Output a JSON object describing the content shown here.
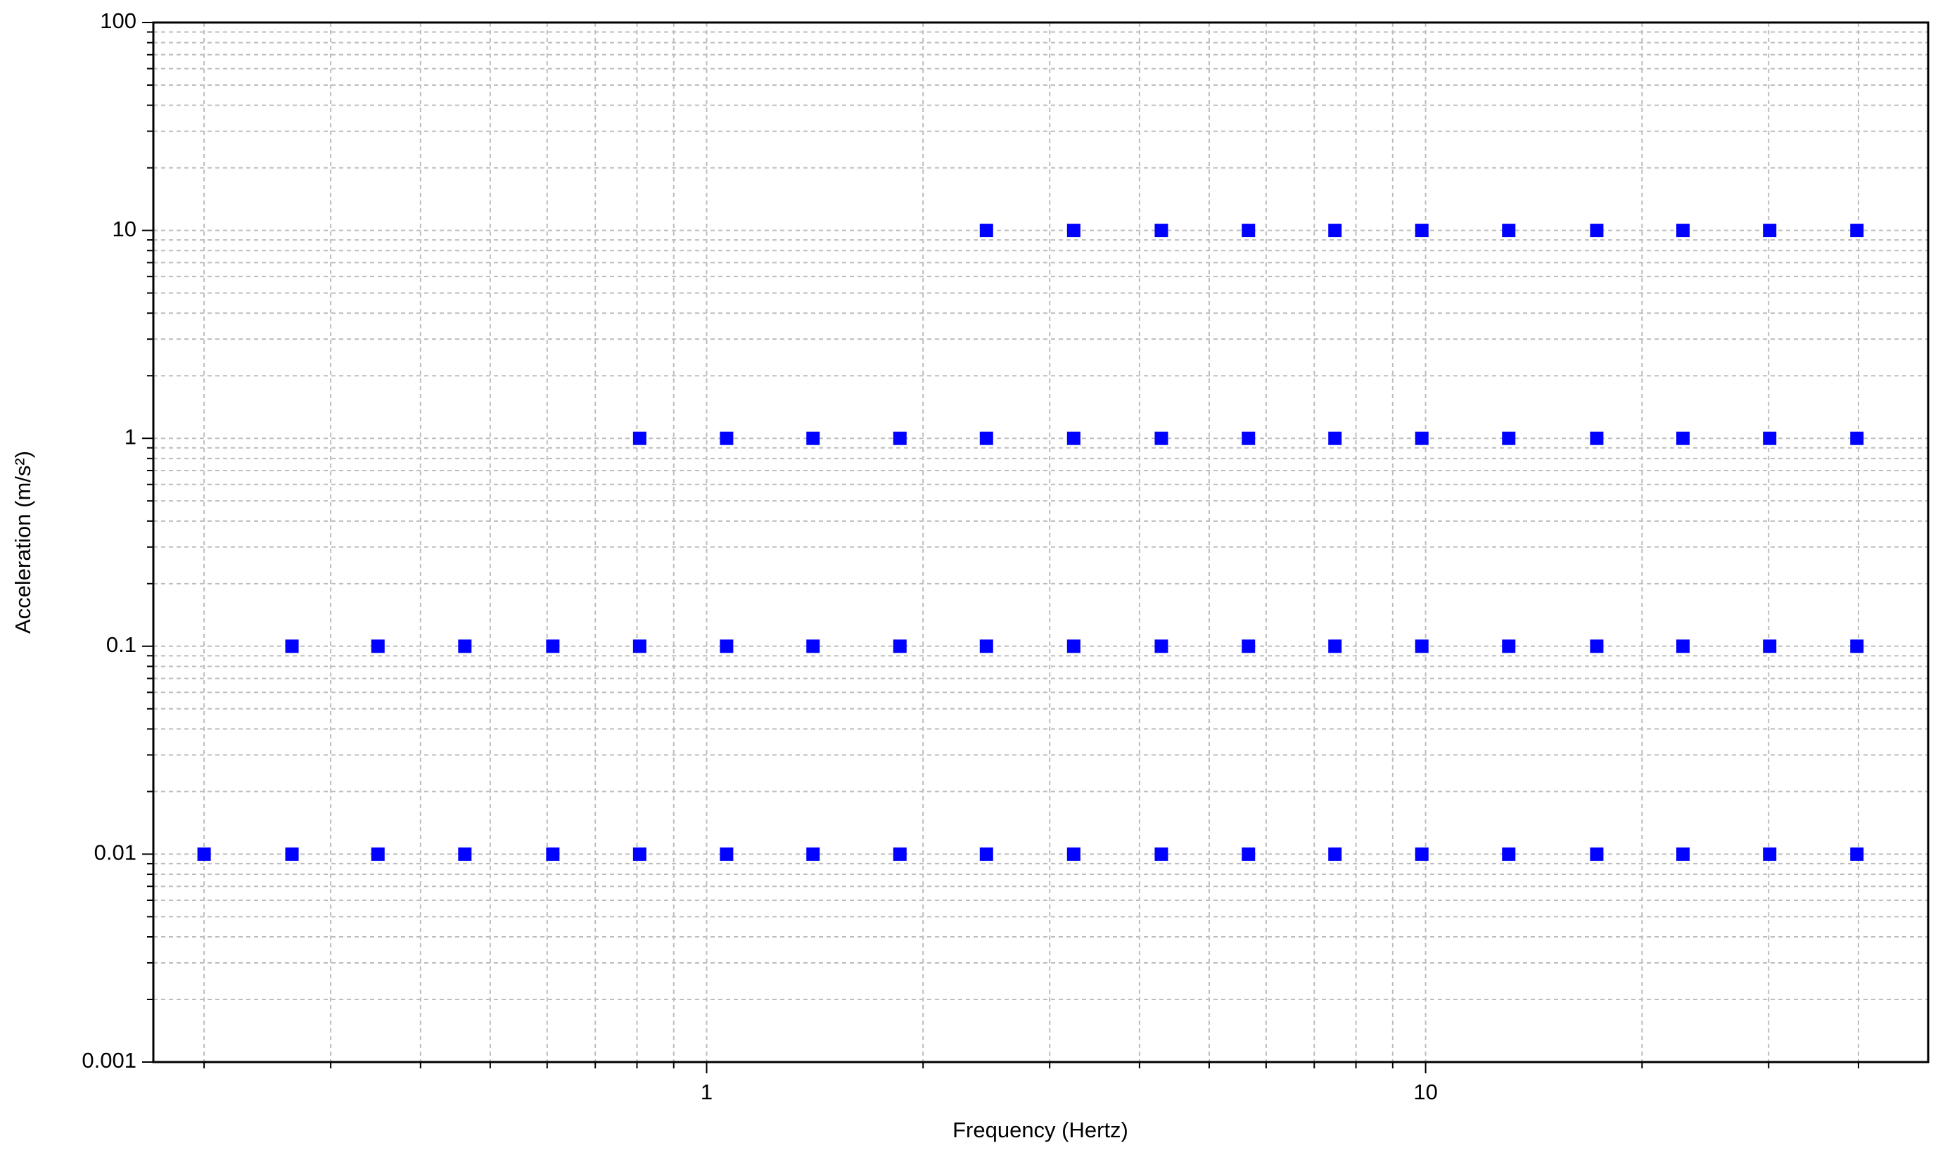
{
  "chart_data": {
    "type": "scatter",
    "xlabel": "Frequency (Hertz)",
    "ylabel": "Acceleration (m/s²)",
    "xscale": "log",
    "yscale": "log",
    "grid": true,
    "xlim": [
      0.17,
      50
    ],
    "ylim": [
      0.001,
      100
    ],
    "xticks": [
      1,
      10
    ],
    "xminor_ticks": [
      0.2,
      0.3,
      0.4,
      0.5,
      0.6,
      0.7,
      0.8,
      0.9,
      2,
      3,
      4,
      5,
      6,
      7,
      8,
      9,
      20,
      30,
      40
    ],
    "yticks": [
      0.001,
      0.01,
      0.1,
      1,
      10,
      100
    ],
    "yminor_ticks": [
      0.002,
      0.003,
      0.004,
      0.005,
      0.006,
      0.007,
      0.008,
      0.009,
      0.02,
      0.03,
      0.04,
      0.05,
      0.06,
      0.07,
      0.08,
      0.09,
      0.2,
      0.3,
      0.4,
      0.5,
      0.6,
      0.7,
      0.8,
      0.9,
      2,
      3,
      4,
      5,
      6,
      7,
      8,
      9,
      20,
      30,
      40,
      50,
      60,
      70,
      80,
      90
    ],
    "series": [
      {
        "color": "#0000ff",
        "x": [
          0.2,
          0.265,
          0.349,
          0.461,
          0.611,
          0.807,
          1.066,
          1.406,
          1.857,
          2.45,
          3.24,
          4.29,
          5.67,
          7.48,
          9.88,
          13.05,
          17.3,
          22.8,
          30.1,
          39.8
        ],
        "values": [
          0.01,
          0.01,
          0.01,
          0.01,
          0.01,
          0.01,
          0.01,
          0.01,
          0.01,
          0.01,
          0.01,
          0.01,
          0.01,
          0.01,
          0.01,
          0.01,
          0.01,
          0.01,
          0.01,
          0.01
        ]
      },
      {
        "color": "#0000ff",
        "x": [
          0.265,
          0.349,
          0.461,
          0.611,
          0.807,
          1.066,
          1.406,
          1.857,
          2.45,
          3.24,
          4.29,
          5.67,
          7.48,
          9.88,
          13.05,
          17.3,
          22.8,
          30.1,
          39.8
        ],
        "values": [
          0.1,
          0.1,
          0.1,
          0.1,
          0.1,
          0.1,
          0.1,
          0.1,
          0.1,
          0.1,
          0.1,
          0.1,
          0.1,
          0.1,
          0.1,
          0.1,
          0.1,
          0.1,
          0.1
        ]
      },
      {
        "color": "#0000ff",
        "x": [
          0.807,
          1.066,
          1.406,
          1.857,
          2.45,
          3.24,
          4.29,
          5.67,
          7.48,
          9.88,
          13.05,
          17.3,
          22.8,
          30.1,
          39.8
        ],
        "values": [
          1,
          1,
          1,
          1,
          1,
          1,
          1,
          1,
          1,
          1,
          1,
          1,
          1,
          1,
          1
        ]
      },
      {
        "color": "#0000ff",
        "x": [
          2.45,
          3.24,
          4.29,
          5.67,
          7.48,
          9.88,
          13.05,
          17.3,
          22.8,
          30.1,
          39.8
        ],
        "values": [
          10,
          10,
          10,
          10,
          10,
          10,
          10,
          10,
          10,
          10,
          10
        ]
      }
    ]
  }
}
